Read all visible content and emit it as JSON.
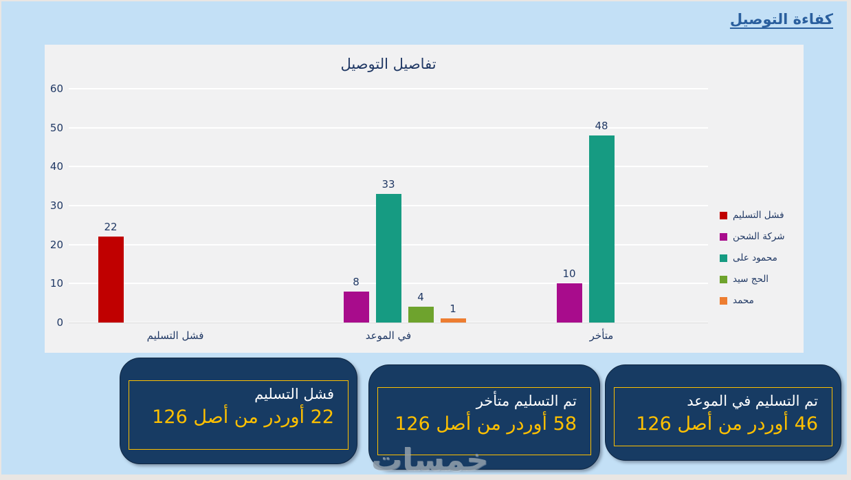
{
  "page": {
    "title": "كفاءة التوصيل"
  },
  "chart_data": {
    "type": "bar",
    "title": "تفاصيل التوصيل",
    "categories": [
      "فشل التسليم",
      "في الموعد",
      "متأخر"
    ],
    "series": [
      {
        "name": "فشل التسليم",
        "color": "#C00000",
        "values": [
          22,
          null,
          null
        ]
      },
      {
        "name": "شركة الشحن",
        "color": "#A80C8C",
        "values": [
          null,
          8,
          10
        ]
      },
      {
        "name": "محمود على",
        "color": "#169B82",
        "values": [
          null,
          33,
          48
        ]
      },
      {
        "name": "الحج سيد",
        "color": "#6EA32D",
        "values": [
          null,
          4,
          null
        ]
      },
      {
        "name": "محمد",
        "color": "#ED7D31",
        "values": [
          null,
          1,
          null
        ]
      }
    ],
    "ylabel": "",
    "xlabel": "",
    "ylim": [
      0,
      60
    ],
    "yticks": [
      0,
      10,
      20,
      30,
      40,
      50,
      60
    ],
    "grid": true,
    "legend_position": "right",
    "plot_background": "#F1F1F2",
    "gridline_color": "#FFFFFF",
    "text_color": "#203864"
  },
  "summary_boxes": [
    {
      "title": "فشل التسليم",
      "detail": "22 أوردر من أصل 126"
    },
    {
      "title": "تم التسليم متأخر",
      "detail": "58 أوردر من أصل 126"
    },
    {
      "title": "تم التسليم في الموعد",
      "detail": "46 أوردر من أصل 126"
    }
  ],
  "watermark": "خمسات",
  "colors": {
    "page_background": "#C3E0F6",
    "box_fill": "#173B63",
    "box_border": "#FFC000",
    "accent_gold": "#FFC000",
    "title_blue": "#2A5F9E",
    "navy_text": "#203864"
  }
}
